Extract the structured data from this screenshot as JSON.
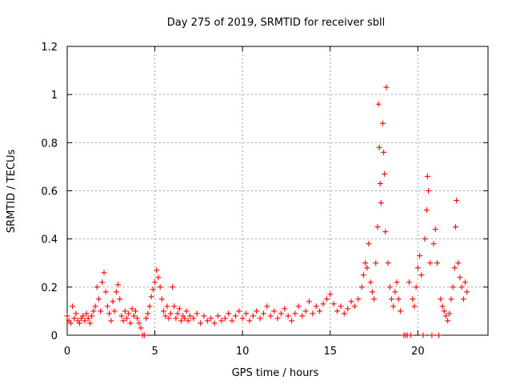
{
  "chart_data": {
    "type": "scatter",
    "title": "Day 275 of 2019, SRMTID for receiver sbll",
    "xlabel": "GPS time / hours",
    "ylabel": "SRMTID / TECUs",
    "xlim": [
      0,
      24
    ],
    "ylim": [
      0,
      1.2
    ],
    "x_ticks": [
      0,
      5,
      10,
      15,
      20
    ],
    "x_tick_labels": [
      "0",
      "5",
      "10",
      "15",
      "20"
    ],
    "y_ticks": [
      0,
      0.2,
      0.4,
      0.6,
      0.8,
      1.0,
      1.2
    ],
    "y_tick_labels": [
      "0",
      "0.2",
      "0.4",
      "0.6",
      "0.8",
      "1",
      "1.2"
    ],
    "grid": true,
    "marker": "+",
    "color": "#ff0000",
    "series": [
      {
        "name": "SRMTID",
        "points": [
          [
            0.0,
            0.08
          ],
          [
            0.1,
            0.06
          ],
          [
            0.2,
            0.05
          ],
          [
            0.3,
            0.12
          ],
          [
            0.4,
            0.07
          ],
          [
            0.5,
            0.09
          ],
          [
            0.6,
            0.06
          ],
          [
            0.7,
            0.05
          ],
          [
            0.8,
            0.07
          ],
          [
            0.9,
            0.08
          ],
          [
            1.0,
            0.06
          ],
          [
            1.1,
            0.09
          ],
          [
            1.2,
            0.07
          ],
          [
            1.3,
            0.05
          ],
          [
            1.4,
            0.08
          ],
          [
            1.5,
            0.1
          ],
          [
            1.6,
            0.12
          ],
          [
            1.7,
            0.2
          ],
          [
            1.8,
            0.15
          ],
          [
            1.9,
            0.1
          ],
          [
            2.0,
            0.22
          ],
          [
            2.1,
            0.26
          ],
          [
            2.2,
            0.18
          ],
          [
            2.3,
            0.12
          ],
          [
            2.4,
            0.09
          ],
          [
            2.5,
            0.06
          ],
          [
            2.6,
            0.14
          ],
          [
            2.7,
            0.1
          ],
          [
            2.8,
            0.18
          ],
          [
            2.9,
            0.21
          ],
          [
            3.0,
            0.15
          ],
          [
            3.1,
            0.08
          ],
          [
            3.2,
            0.06
          ],
          [
            3.3,
            0.1
          ],
          [
            3.4,
            0.07
          ],
          [
            3.5,
            0.09
          ],
          [
            3.6,
            0.05
          ],
          [
            3.7,
            0.11
          ],
          [
            3.8,
            0.08
          ],
          [
            3.9,
            0.1
          ],
          [
            4.0,
            0.07
          ],
          [
            4.1,
            0.05
          ],
          [
            4.2,
            0.03
          ],
          [
            4.3,
            0.0
          ],
          [
            4.4,
            0.0
          ],
          [
            4.5,
            0.07
          ],
          [
            4.6,
            0.09
          ],
          [
            4.7,
            0.12
          ],
          [
            4.8,
            0.16
          ],
          [
            4.9,
            0.19
          ],
          [
            5.0,
            0.22
          ],
          [
            5.1,
            0.27
          ],
          [
            5.2,
            0.24
          ],
          [
            5.3,
            0.2
          ],
          [
            5.4,
            0.15
          ],
          [
            5.5,
            0.1
          ],
          [
            5.6,
            0.08
          ],
          [
            5.7,
            0.12
          ],
          [
            5.8,
            0.07
          ],
          [
            5.9,
            0.09
          ],
          [
            6.0,
            0.2
          ],
          [
            6.1,
            0.12
          ],
          [
            6.2,
            0.07
          ],
          [
            6.3,
            0.09
          ],
          [
            6.4,
            0.11
          ],
          [
            6.5,
            0.06
          ],
          [
            6.6,
            0.08
          ],
          [
            6.7,
            0.07
          ],
          [
            6.8,
            0.1
          ],
          [
            6.9,
            0.06
          ],
          [
            7.0,
            0.08
          ],
          [
            7.2,
            0.07
          ],
          [
            7.4,
            0.09
          ],
          [
            7.6,
            0.05
          ],
          [
            7.8,
            0.08
          ],
          [
            8.0,
            0.06
          ],
          [
            8.2,
            0.07
          ],
          [
            8.4,
            0.05
          ],
          [
            8.6,
            0.08
          ],
          [
            8.8,
            0.06
          ],
          [
            9.0,
            0.07
          ],
          [
            9.2,
            0.09
          ],
          [
            9.4,
            0.06
          ],
          [
            9.6,
            0.08
          ],
          [
            9.8,
            0.1
          ],
          [
            10.0,
            0.07
          ],
          [
            10.2,
            0.09
          ],
          [
            10.4,
            0.06
          ],
          [
            10.6,
            0.08
          ],
          [
            10.8,
            0.1
          ],
          [
            11.0,
            0.07
          ],
          [
            11.2,
            0.09
          ],
          [
            11.4,
            0.12
          ],
          [
            11.6,
            0.08
          ],
          [
            11.8,
            0.1
          ],
          [
            12.0,
            0.07
          ],
          [
            12.2,
            0.09
          ],
          [
            12.4,
            0.11
          ],
          [
            12.6,
            0.08
          ],
          [
            12.8,
            0.06
          ],
          [
            13.0,
            0.09
          ],
          [
            13.2,
            0.12
          ],
          [
            13.4,
            0.08
          ],
          [
            13.6,
            0.1
          ],
          [
            13.8,
            0.14
          ],
          [
            14.0,
            0.09
          ],
          [
            14.2,
            0.12
          ],
          [
            14.4,
            0.1
          ],
          [
            14.6,
            0.13
          ],
          [
            14.8,
            0.15
          ],
          [
            15.0,
            0.17
          ],
          [
            15.2,
            0.13
          ],
          [
            15.4,
            0.1
          ],
          [
            15.6,
            0.12
          ],
          [
            15.8,
            0.09
          ],
          [
            16.0,
            0.11
          ],
          [
            16.2,
            0.14
          ],
          [
            16.4,
            0.12
          ],
          [
            16.6,
            0.15
          ],
          [
            16.8,
            0.2
          ],
          [
            16.9,
            0.25
          ],
          [
            17.0,
            0.3
          ],
          [
            17.1,
            0.28
          ],
          [
            17.2,
            0.38
          ],
          [
            17.3,
            0.22
          ],
          [
            17.4,
            0.18
          ],
          [
            17.5,
            0.15
          ],
          [
            17.6,
            0.3
          ],
          [
            17.7,
            0.45
          ],
          [
            17.75,
            0.96
          ],
          [
            17.8,
            0.78
          ],
          [
            17.85,
            0.63
          ],
          [
            17.9,
            0.55
          ],
          [
            18.0,
            0.88
          ],
          [
            18.05,
            0.76
          ],
          [
            18.1,
            0.67
          ],
          [
            18.15,
            0.43
          ],
          [
            18.2,
            1.03
          ],
          [
            18.3,
            0.3
          ],
          [
            18.4,
            0.2
          ],
          [
            18.5,
            0.15
          ],
          [
            18.6,
            0.12
          ],
          [
            18.7,
            0.18
          ],
          [
            18.8,
            0.22
          ],
          [
            18.9,
            0.15
          ],
          [
            19.0,
            0.1
          ],
          [
            19.2,
            0.0
          ],
          [
            19.3,
            0.0
          ],
          [
            19.4,
            0.0
          ],
          [
            19.5,
            0.22
          ],
          [
            19.6,
            0.0
          ],
          [
            19.7,
            0.15
          ],
          [
            19.8,
            0.12
          ],
          [
            19.9,
            0.2
          ],
          [
            20.0,
            0.28
          ],
          [
            20.1,
            0.33
          ],
          [
            20.2,
            0.25
          ],
          [
            20.3,
            0.0
          ],
          [
            20.4,
            0.4
          ],
          [
            20.5,
            0.52
          ],
          [
            20.55,
            0.66
          ],
          [
            20.6,
            0.6
          ],
          [
            20.7,
            0.3
          ],
          [
            20.8,
            0.0
          ],
          [
            20.9,
            0.38
          ],
          [
            21.0,
            0.44
          ],
          [
            21.1,
            0.3
          ],
          [
            21.2,
            0.0
          ],
          [
            21.3,
            0.15
          ],
          [
            21.4,
            0.12
          ],
          [
            21.5,
            0.1
          ],
          [
            21.6,
            0.08
          ],
          [
            21.7,
            0.06
          ],
          [
            21.8,
            0.09
          ],
          [
            21.9,
            0.15
          ],
          [
            22.0,
            0.2
          ],
          [
            22.1,
            0.28
          ],
          [
            22.15,
            0.45
          ],
          [
            22.2,
            0.56
          ],
          [
            22.3,
            0.3
          ],
          [
            22.4,
            0.24
          ],
          [
            22.5,
            0.2
          ],
          [
            22.6,
            0.15
          ],
          [
            22.7,
            0.22
          ],
          [
            22.8,
            0.18
          ]
        ]
      }
    ]
  }
}
